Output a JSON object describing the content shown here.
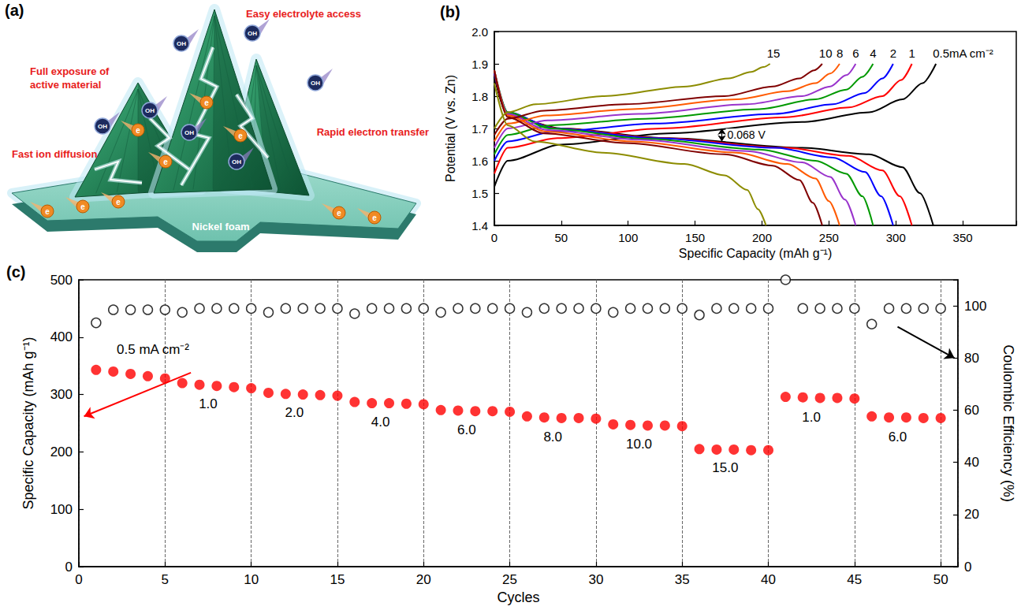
{
  "diagram": {
    "panel": "(a)",
    "labels": [
      "Easy electrolyte access",
      "Full exposure of active material",
      "Fast ion diffusion",
      "Rapid electron transfer"
    ],
    "substrate": "Nickel foam",
    "ion": "OH",
    "electron": "e"
  },
  "chart_data": [
    {
      "panel": "(b)",
      "type": "line",
      "x_label": "Specific Capacity (mAh g⁻¹)",
      "y_label": "Potential (V vs. Zn)",
      "xlim": [
        0,
        390
      ],
      "xticks": [
        0,
        50,
        100,
        150,
        200,
        250,
        300,
        350
      ],
      "ylim": [
        1.4,
        2.0
      ],
      "yticks": [
        1.4,
        1.5,
        1.6,
        1.7,
        1.8,
        1.9,
        {
          "value": 2,
          "label": "2.0"
        }
      ],
      "grid": false,
      "series": [
        {
          "label": "0.5mA cm⁻²",
          "color": "#000000",
          "charge": {
            "x": [
              0,
              10,
              50,
              130,
              230,
              280,
              305,
              320,
              330
            ],
            "y": [
              1.52,
              1.6,
              1.65,
              1.685,
              1.72,
              1.75,
              1.79,
              1.84,
              1.9
            ]
          },
          "discharge": {
            "x": [
              0,
              10,
              50,
              130,
              230,
              280,
              305,
              318,
              328
            ],
            "y": [
              1.86,
              1.74,
              1.7,
              1.67,
              1.64,
              1.62,
              1.58,
              1.5,
              1.4
            ]
          }
        },
        {
          "label": "1",
          "color": "#ff0000",
          "charge": {
            "x": [
              0,
              10,
              47,
              125,
              218,
              265,
              290,
              304,
              312
            ],
            "y": [
              1.56,
              1.64,
              1.67,
              1.7,
              1.735,
              1.765,
              1.8,
              1.85,
              1.9
            ]
          },
          "discharge": {
            "x": [
              0,
              10,
              47,
              125,
              218,
              265,
              290,
              303,
              312
            ],
            "y": [
              1.87,
              1.745,
              1.7,
              1.67,
              1.64,
              1.615,
              1.57,
              1.49,
              1.4
            ]
          }
        },
        {
          "label": "2",
          "color": "#0000ff",
          "charge": {
            "x": [
              0,
              10,
              45,
              120,
              210,
              253,
              277,
              290,
              298
            ],
            "y": [
              1.6,
              1.66,
              1.69,
              1.715,
              1.745,
              1.775,
              1.81,
              1.855,
              1.9
            ]
          },
          "discharge": {
            "x": [
              0,
              10,
              45,
              120,
              210,
              253,
              277,
              289,
              298
            ],
            "y": [
              1.87,
              1.75,
              1.7,
              1.67,
              1.64,
              1.61,
              1.565,
              1.49,
              1.4
            ]
          }
        },
        {
          "label": "4",
          "color": "#009900",
          "charge": {
            "x": [
              0,
              10,
              42,
              113,
              198,
              240,
              263,
              275,
              283
            ],
            "y": [
              1.62,
              1.68,
              1.71,
              1.73,
              1.76,
              1.79,
              1.82,
              1.86,
              1.9
            ]
          },
          "discharge": {
            "x": [
              0,
              10,
              42,
              113,
              198,
              240,
              263,
              275,
              283
            ],
            "y": [
              1.88,
              1.75,
              1.7,
              1.668,
              1.635,
              1.6,
              1.56,
              1.49,
              1.4
            ]
          }
        },
        {
          "label": "6",
          "color": "#9933cc",
          "charge": {
            "x": [
              0,
              10,
              40,
              108,
              189,
              230,
              251,
              263,
              270
            ],
            "y": [
              1.64,
              1.7,
              1.725,
              1.745,
              1.775,
              1.8,
              1.83,
              1.865,
              1.9
            ]
          },
          "discharge": {
            "x": [
              0,
              10,
              40,
              108,
              189,
              230,
              251,
              262,
              270
            ],
            "y": [
              1.88,
              1.745,
              1.695,
              1.665,
              1.63,
              1.595,
              1.55,
              1.48,
              1.4
            ]
          }
        },
        {
          "label": "8",
          "color": "#ff5a00",
          "charge": {
            "x": [
              0,
              10,
              39,
              103,
              181,
              219,
              240,
              251,
              258
            ],
            "y": [
              1.66,
              1.715,
              1.74,
              1.76,
              1.79,
              1.815,
              1.84,
              1.87,
              1.9
            ]
          },
          "discharge": {
            "x": [
              0,
              10,
              39,
              103,
              181,
              219,
              240,
              250,
              258
            ],
            "y": [
              1.88,
              1.74,
              1.69,
              1.66,
              1.625,
              1.59,
              1.545,
              1.475,
              1.4
            ]
          }
        },
        {
          "label": "10",
          "color": "#800000",
          "charge": {
            "x": [
              0,
              10,
              37,
              98,
              172,
              208,
              228,
              239,
              245
            ],
            "y": [
              1.68,
              1.73,
              1.755,
              1.775,
              1.8,
              1.83,
              1.855,
              1.88,
              1.9
            ]
          },
          "discharge": {
            "x": [
              0,
              10,
              37,
              98,
              172,
              208,
              228,
              238,
              245
            ],
            "y": [
              1.88,
              1.735,
              1.685,
              1.655,
              1.62,
              1.585,
              1.54,
              1.47,
              1.4
            ]
          }
        },
        {
          "label": "15",
          "color": "#8c8c00",
          "charge": {
            "x": [
              0,
              10,
              31,
              82,
              144,
              175,
              192,
              201,
              206
            ],
            "y": [
              1.7,
              1.75,
              1.775,
              1.8,
              1.83,
              1.855,
              1.875,
              1.89,
              1.9
            ]
          },
          "discharge": {
            "x": [
              0,
              10,
              30,
              81,
              142,
              172,
              189,
              197,
              203
            ],
            "y": [
              1.84,
              1.71,
              1.66,
              1.625,
              1.59,
              1.555,
              1.51,
              1.45,
              1.4
            ]
          }
        }
      ],
      "annotations": [
        {
          "text": "0.068 V",
          "x": 170,
          "y_from": 1.66,
          "y_to": 1.7
        }
      ]
    },
    {
      "panel": "(c)",
      "type": "scatter",
      "x_label": "Cycles",
      "y_label": "Specific Capacity (mAh g⁻¹)",
      "y2_label": "Coulombic Efficiency (%)",
      "xlim": [
        0,
        51
      ],
      "xticks": [
        0,
        5,
        10,
        15,
        20,
        25,
        30,
        35,
        40,
        45,
        50
      ],
      "ylim": [
        0,
        500
      ],
      "yticks": [
        0,
        100,
        200,
        300,
        400,
        500
      ],
      "y2lim": [
        0,
        110
      ],
      "y2ticks": [
        0,
        20,
        40,
        60,
        80,
        100
      ],
      "grid": "x",
      "x": [
        1,
        2,
        3,
        4,
        5,
        6,
        7,
        8,
        9,
        10,
        11,
        12,
        13,
        14,
        15,
        16,
        17,
        18,
        19,
        20,
        21,
        22,
        23,
        24,
        25,
        26,
        27,
        28,
        29,
        30,
        31,
        32,
        33,
        34,
        35,
        36,
        37,
        38,
        39,
        40,
        41,
        42,
        43,
        44,
        45,
        46,
        47,
        48,
        49,
        50
      ],
      "series": [
        {
          "color": "#ff0000",
          "marker": "filled_circle",
          "values": [
            343,
            340,
            336,
            332,
            328,
            320,
            317,
            315,
            313,
            311,
            303,
            301,
            300,
            299,
            298,
            287,
            285,
            285,
            284,
            283,
            273,
            272,
            271,
            271,
            270,
            262,
            260,
            259,
            259,
            258,
            248,
            247,
            246,
            246,
            245,
            205,
            204,
            204,
            203,
            203,
            296,
            295,
            294,
            294,
            293,
            262,
            260,
            260,
            259,
            259
          ]
        },
        {
          "color": "#000000",
          "marker": "open_circle",
          "axis": "y2",
          "values": [
            93.5,
            98.5,
            98.5,
            98.5,
            98.5,
            97.5,
            99,
            99,
            99,
            99,
            97.5,
            99,
            99,
            99,
            99,
            97,
            99,
            99,
            99,
            99,
            97.5,
            99,
            99,
            99,
            99,
            97.5,
            99,
            99,
            99,
            99,
            97.5,
            99,
            99,
            99,
            99,
            96.5,
            99,
            99,
            99,
            99,
            110,
            99,
            99,
            99,
            99,
            93,
            99,
            99,
            99,
            99
          ]
        }
      ],
      "annotations": [
        {
          "text": "0.5 mA cm⁻²",
          "x": 4.3,
          "y": 378
        },
        {
          "text": "1.0",
          "x": 7.5,
          "y": 283
        },
        {
          "text": "2.0",
          "x": 12.5,
          "y": 268
        },
        {
          "text": "4.0",
          "x": 17.5,
          "y": 252
        },
        {
          "text": "6.0",
          "x": 22.5,
          "y": 238
        },
        {
          "text": "8.0",
          "x": 27.5,
          "y": 226
        },
        {
          "text": "10.0",
          "x": 32.5,
          "y": 213
        },
        {
          "text": "15.0",
          "x": 37.5,
          "y": 172
        },
        {
          "text": "1.0",
          "x": 42.5,
          "y": 260
        },
        {
          "text": "6.0",
          "x": 47.5,
          "y": 226
        }
      ],
      "arrows": [
        {
          "from": [
            6.5,
            338
          ],
          "to": [
            0.3,
            262
          ],
          "axis": "y"
        },
        {
          "from": [
            47.5,
            92
          ],
          "to": [
            50.8,
            80
          ],
          "axis": "y2"
        }
      ]
    }
  ]
}
